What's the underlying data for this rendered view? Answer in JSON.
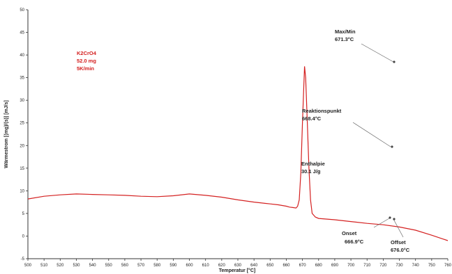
{
  "chart_data": {
    "type": "line",
    "title": "",
    "xlabel": "Temperatur [°C]",
    "ylabel": "Wärmestrom [(mg)/(s)] [mJ/s]",
    "xlim": [
      500,
      760
    ],
    "ylim": [
      -5,
      50
    ],
    "x_ticks": [
      500,
      510,
      520,
      530,
      540,
      550,
      560,
      570,
      580,
      590,
      600,
      610,
      620,
      630,
      640,
      650,
      660,
      670,
      680,
      690,
      700,
      710,
      720,
      730,
      740,
      750,
      760
    ],
    "y_ticks": [
      -5,
      0,
      5,
      10,
      15,
      20,
      25,
      30,
      35,
      40,
      45,
      50
    ],
    "grid": false,
    "sample_info": [
      "K2CrO4",
      "52.0 mg",
      "5K/min"
    ],
    "series": [
      {
        "color": "#d42020",
        "x": [
          500,
          510,
          520,
          530,
          540,
          550,
          560,
          570,
          580,
          590,
          600,
          610,
          620,
          630,
          640,
          650,
          655,
          660,
          662,
          664,
          666,
          667,
          668,
          669,
          670,
          671.3,
          672,
          673,
          674,
          675,
          676,
          678,
          680,
          690,
          700,
          710,
          720,
          730,
          740,
          750,
          760
        ],
        "y": [
          8.2,
          8.8,
          9.1,
          9.3,
          9.2,
          9.1,
          9.0,
          8.8,
          8.7,
          8.9,
          9.3,
          9.0,
          8.6,
          8.0,
          7.5,
          7.1,
          6.9,
          6.6,
          6.4,
          6.3,
          6.2,
          6.6,
          8.0,
          14.0,
          25.0,
          37.5,
          35.0,
          25.0,
          15.0,
          8.0,
          5.0,
          4.2,
          3.9,
          3.6,
          3.2,
          2.8,
          2.5,
          2.0,
          1.3,
          0.2,
          -1.0
        ]
      }
    ],
    "annotations": [
      {
        "label": "Max/Min",
        "value": "671.3°C",
        "x": 671.3,
        "y": 37.5
      },
      {
        "label": "Reaktionspunkt",
        "value": "668.4°C",
        "x": 668.4,
        "y": 13.0
      },
      {
        "label": "Enthalpie",
        "value": "30.1 J/g"
      },
      {
        "label": "Onset",
        "value": "666.9°C",
        "x": 666.9,
        "y": 6.4
      },
      {
        "label": "Offset",
        "value": "676.0°C",
        "x": 676.0,
        "y": 5.0
      }
    ]
  }
}
